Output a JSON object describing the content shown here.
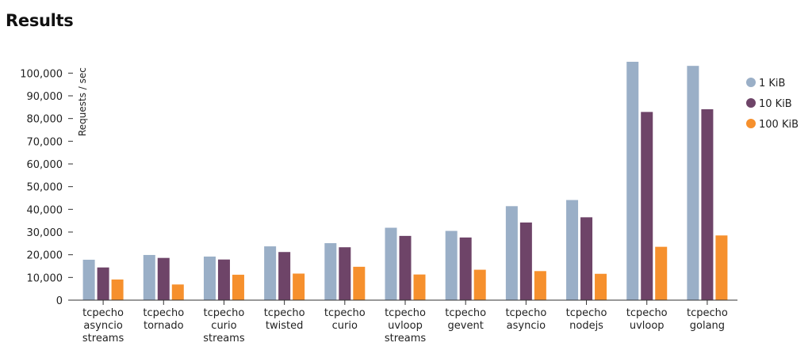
{
  "page": {
    "title": "Results"
  },
  "chart_data": {
    "type": "bar",
    "title": "",
    "xlabel": "",
    "ylabel": "Requests / sec",
    "ylim": [
      0,
      105000
    ],
    "yticks": [
      0,
      10000,
      20000,
      30000,
      40000,
      50000,
      60000,
      70000,
      80000,
      90000,
      100000
    ],
    "ytick_labels": [
      "0",
      "10,000",
      "20,000",
      "30,000",
      "40,000",
      "50,000",
      "60,000",
      "70,000",
      "80,000",
      "90,000",
      "100,000"
    ],
    "grid": false,
    "legend_position": "top-right",
    "categories": [
      [
        "tcpecho",
        "asyncio",
        "streams"
      ],
      [
        "tcpecho",
        "tornado"
      ],
      [
        "tcpecho",
        "curio",
        "streams"
      ],
      [
        "tcpecho",
        "twisted"
      ],
      [
        "tcpecho",
        "curio"
      ],
      [
        "tcpecho",
        "uvloop",
        "streams"
      ],
      [
        "tcpecho",
        "gevent"
      ],
      [
        "tcpecho",
        "asyncio"
      ],
      [
        "tcpecho",
        "nodejs"
      ],
      [
        "tcpecho",
        "uvloop"
      ],
      [
        "tcpecho",
        "golang"
      ]
    ],
    "series": [
      {
        "name": "1 KiB",
        "color": "#9aafc7",
        "values": [
          17800,
          19900,
          19200,
          23700,
          25100,
          31900,
          30500,
          41400,
          44100,
          105000,
          103200
        ]
      },
      {
        "name": "10 KiB",
        "color": "#6e4468",
        "values": [
          14400,
          18600,
          17900,
          21200,
          23300,
          28300,
          27600,
          34200,
          36500,
          82900,
          84100
        ]
      },
      {
        "name": "100 KiB",
        "color": "#f6902d",
        "values": [
          9100,
          6900,
          11200,
          11700,
          14700,
          11300,
          13400,
          12800,
          11600,
          23500,
          28500
        ]
      }
    ]
  }
}
